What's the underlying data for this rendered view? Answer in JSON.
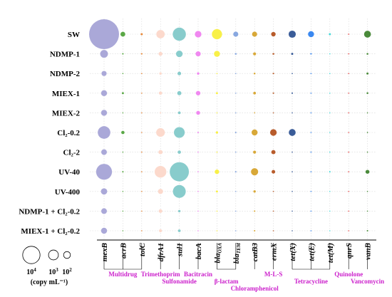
{
  "chart_data": {
    "type": "bubble-matrix",
    "rows": [
      "SW",
      "NDMP-1",
      "NDMP-2",
      "MIEX-1",
      "MIEX-2",
      "Cl₂-0.2",
      "Cl₂-2",
      "UV-40",
      "UV-400",
      "NDMP-1 + Cl₂-0.2",
      "MIEX-1 + Cl₂-0.2"
    ],
    "genes": [
      {
        "name": "mexB",
        "sub": "",
        "color": "#aaa8d8"
      },
      {
        "name": "acrB",
        "sub": "",
        "color": "#5aa846"
      },
      {
        "name": "tolC",
        "sub": "",
        "color": "#e8893a"
      },
      {
        "name": "dfrA1",
        "sub": "",
        "color": "#fcd9cc"
      },
      {
        "name": "sul1",
        "sub": "",
        "color": "#88cccc"
      },
      {
        "name": "bacA",
        "sub": "",
        "color": "#f088f0"
      },
      {
        "name": "bla",
        "sub": "OXA",
        "color": "#f8f048"
      },
      {
        "name": "bla",
        "sub": "TEM",
        "color": "#88a8e0"
      },
      {
        "name": "catB3",
        "sub": "",
        "color": "#d8a838"
      },
      {
        "name": "ermX",
        "sub": "",
        "color": "#b85c2c"
      },
      {
        "name": "tet(X)",
        "sub": "",
        "color": "#3a5c98"
      },
      {
        "name": "tet(E)",
        "sub": "",
        "color": "#3a88f0"
      },
      {
        "name": "tet(M)",
        "sub": "",
        "color": "#48d8d8"
      },
      {
        "name": "qnrS",
        "sub": "",
        "color": "#e84848"
      },
      {
        "name": "vanB",
        "sub": "",
        "color": "#4a8a3a"
      }
    ],
    "abundance_scale_note": "relative bubble radius, 0-1",
    "values": [
      [
        1.0,
        0.16,
        0.07,
        0.28,
        0.44,
        0.22,
        0.34,
        0.17,
        0.17,
        0.15,
        0.24,
        0.2,
        0.07,
        0.04,
        0.23
      ],
      [
        0.26,
        0.05,
        0.05,
        0.13,
        0.22,
        0.17,
        0.2,
        0.06,
        0.1,
        0.06,
        0.07,
        0.05,
        0.02,
        0.02,
        0.06
      ],
      [
        0.17,
        0.04,
        0.02,
        0.08,
        0.12,
        0.08,
        0.04,
        0.03,
        0.06,
        0.05,
        0.04,
        0.02,
        0.02,
        0.01,
        0.07
      ],
      [
        0.2,
        0.07,
        0.03,
        0.11,
        0.14,
        0.15,
        0.07,
        0.03,
        0.09,
        0.05,
        0.05,
        0.04,
        0.02,
        0.01,
        0.06
      ],
      [
        0.2,
        0.02,
        0.02,
        0.05,
        0.09,
        0.13,
        0.02,
        0.02,
        0.04,
        0.02,
        0.02,
        0.01,
        0.03,
        0.02,
        0.02
      ],
      [
        0.42,
        0.11,
        0.03,
        0.29,
        0.36,
        0.05,
        0.08,
        0.05,
        0.2,
        0.22,
        0.23,
        0.03,
        0.02,
        0.01,
        0.04
      ],
      [
        0.19,
        0.02,
        0.01,
        0.14,
        0.11,
        0.02,
        0.04,
        0.03,
        0.1,
        0.14,
        0.03,
        0.01,
        0.01,
        0.01,
        0.02
      ],
      [
        0.53,
        0.05,
        0.02,
        0.39,
        0.64,
        0.04,
        0.15,
        0.05,
        0.24,
        0.12,
        0.04,
        0.02,
        0.05,
        0.01,
        0.13
      ],
      [
        0.21,
        0.03,
        0.02,
        0.17,
        0.43,
        0.04,
        0.07,
        0.02,
        0.08,
        0.04,
        0.02,
        0.01,
        0.01,
        0.01,
        0.03
      ],
      [
        0.19,
        0.03,
        0.01,
        0.12,
        0.08,
        0.03,
        0.03,
        0.02,
        0.05,
        0.03,
        0.02,
        0.01,
        0.01,
        0.01,
        0.03
      ],
      [
        0.2,
        0.03,
        0.01,
        0.1,
        0.09,
        0.02,
        0.03,
        0.02,
        0.05,
        0.03,
        0.02,
        0.01,
        0.01,
        0.01,
        0.05
      ]
    ],
    "class_labels": [
      {
        "text": "Multidrug",
        "genes": [
          0,
          2
        ],
        "level": 0
      },
      {
        "text": "Trimethoprim",
        "genes": [
          3,
          3
        ],
        "level": 0
      },
      {
        "text": "Sulfonamide",
        "genes": [
          4,
          4
        ],
        "level": 1
      },
      {
        "text": "Bacitracin",
        "genes": [
          5,
          5
        ],
        "level": 0
      },
      {
        "text": "β-lactam",
        "genes": [
          6,
          7
        ],
        "level": 1
      },
      {
        "text": "Chloramphenicol",
        "genes": [
          8,
          8
        ],
        "level": 2
      },
      {
        "text": "M-L-S",
        "genes": [
          9,
          9
        ],
        "level": 0
      },
      {
        "text": "Tetracycline",
        "genes": [
          10,
          12
        ],
        "level": 1
      },
      {
        "text": "Quinolone",
        "genes": [
          13,
          13
        ],
        "level": 0
      },
      {
        "text": "Vancomycin",
        "genes": [
          14,
          14
        ],
        "level": 1
      }
    ],
    "size_legend": {
      "entries": [
        {
          "label_base": "10",
          "label_exp": "4",
          "relative_radius": 0.58
        },
        {
          "label_base": "10",
          "label_exp": "3",
          "relative_radius": 0.33
        },
        {
          "label_base": "10",
          "label_exp": "2",
          "relative_radius": 0.23
        }
      ],
      "unit": "(copy mL⁻¹)"
    }
  }
}
